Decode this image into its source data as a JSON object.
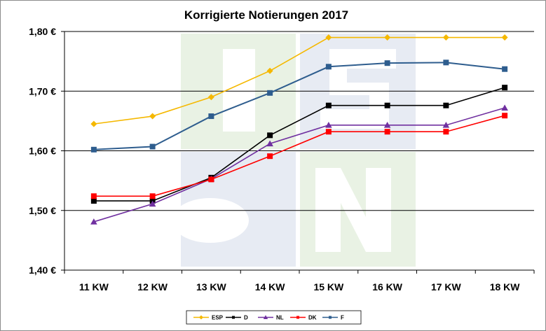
{
  "chart_data": {
    "type": "line",
    "title": "Korrigierte Notierungen 2017",
    "xlabel": "",
    "ylabel": "",
    "categories": [
      "11 KW",
      "12 KW",
      "13 KW",
      "14 KW",
      "15 KW",
      "16 KW",
      "17 KW",
      "18 KW"
    ],
    "ylim": [
      1.4,
      1.8
    ],
    "yticks": [
      1.4,
      1.5,
      1.6,
      1.7,
      1.8
    ],
    "ytick_labels": [
      "1,40 €",
      "1,50 €",
      "1,60 €",
      "1,70 €",
      "1,80 €"
    ],
    "grid": "horizontal",
    "legend_position": "bottom",
    "series": [
      {
        "name": "ESP",
        "color": "#f5b800",
        "marker": "diamond",
        "values": [
          1.645,
          1.658,
          1.69,
          1.734,
          1.79,
          1.79,
          1.79,
          1.79
        ]
      },
      {
        "name": "D",
        "color": "#000000",
        "marker": "square",
        "values": [
          1.516,
          1.516,
          1.555,
          1.626,
          1.676,
          1.676,
          1.676,
          1.706
        ]
      },
      {
        "name": "NL",
        "color": "#7030a0",
        "marker": "triangle",
        "values": [
          1.481,
          1.511,
          1.553,
          1.612,
          1.643,
          1.643,
          1.643,
          1.672
        ]
      },
      {
        "name": "DK",
        "color": "#ff0000",
        "marker": "square",
        "values": [
          1.524,
          1.524,
          1.552,
          1.591,
          1.632,
          1.632,
          1.632,
          1.659
        ]
      },
      {
        "name": "F",
        "color": "#2e5d8e",
        "marker": "square",
        "values": [
          1.602,
          1.607,
          1.658,
          1.697,
          1.741,
          1.747,
          1.748,
          1.737
        ]
      }
    ]
  }
}
